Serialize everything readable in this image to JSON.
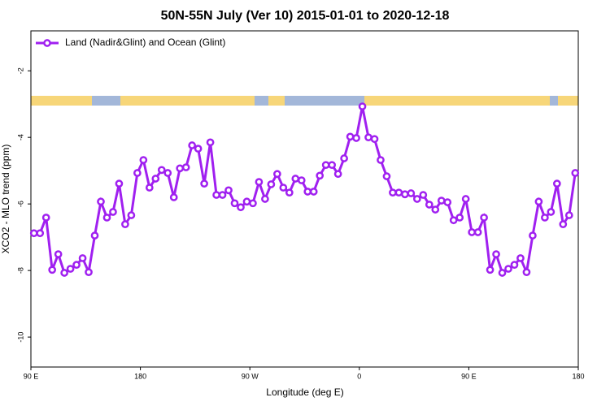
{
  "chart_data": {
    "type": "line",
    "title": "50N-55N July (Ver 10)   2015-01-01 to 2020-12-18",
    "xlabel": "Longitude (deg E)",
    "ylabel": "XCO2 - MLO trend (ppm)",
    "x": [
      92.5,
      97.5,
      102.5,
      107.5,
      112.5,
      117.5,
      122.5,
      127.5,
      132.5,
      137.5,
      142.5,
      147.5,
      152.5,
      157.5,
      162.5,
      167.5,
      172.5,
      177.5,
      182.5,
      187.5,
      192.5,
      197.5,
      202.5,
      207.5,
      212.5,
      217.5,
      222.5,
      227.5,
      232.5,
      237.5,
      242.5,
      247.5,
      252.5,
      257.5,
      262.5,
      267.5,
      272.5,
      277.5,
      282.5,
      287.5,
      292.5,
      297.5,
      302.5,
      307.5,
      312.5,
      317.5,
      322.5,
      327.5,
      332.5,
      337.5,
      342.5,
      347.5,
      352.5,
      357.5,
      362.5,
      367.5,
      372.5,
      377.5,
      382.5,
      387.5,
      392.5,
      397.5,
      402.5,
      407.5,
      412.5,
      417.5,
      422.5,
      427.5,
      432.5,
      437.5,
      442.5,
      447.5,
      452.5,
      457.5,
      462.5,
      467.5,
      472.5,
      477.5,
      482.5,
      487.5,
      492.5,
      497.5,
      502.5,
      507.5,
      512.5,
      517.5,
      522.5,
      527.5,
      532.5,
      537.5
    ],
    "series": [
      {
        "name": "Land (Nadir&Glint) and Ocean (Glint)",
        "color": "#a020f0",
        "values": [
          -6.88,
          -6.88,
          -6.41,
          -7.98,
          -7.51,
          -8.07,
          -7.95,
          -7.83,
          -7.63,
          -8.05,
          -6.95,
          -5.93,
          -6.41,
          -6.24,
          -5.39,
          -6.61,
          -6.34,
          -5.07,
          -4.68,
          -5.51,
          -5.24,
          -4.98,
          -5.07,
          -5.8,
          -4.93,
          -4.9,
          -4.24,
          -4.34,
          -5.39,
          -4.15,
          -5.73,
          -5.73,
          -5.59,
          -5.98,
          -6.1,
          -5.93,
          -5.98,
          -5.34,
          -5.85,
          -5.41,
          -5.1,
          -5.51,
          -5.66,
          -5.24,
          -5.29,
          -5.63,
          -5.63,
          -5.15,
          -4.83,
          -4.83,
          -5.1,
          -4.63,
          -3.98,
          -4.02,
          -3.07,
          -4.0,
          -4.05,
          -4.68,
          -5.17,
          -5.66,
          -5.66,
          -5.71,
          -5.68,
          -5.85,
          -5.73,
          -6.02,
          -6.17,
          -5.9,
          -5.95,
          -6.49,
          -6.41,
          -5.85,
          -6.85,
          -6.85,
          -6.41,
          -7.98,
          -7.51,
          -8.07,
          -7.95,
          -7.83,
          -7.63,
          -8.05,
          -6.95,
          -5.93,
          -6.41,
          -6.24,
          -5.39,
          -6.61,
          -6.34,
          -5.07
        ]
      }
    ],
    "xlim": [
      90,
      540
    ],
    "xticks": [
      {
        "value": 90,
        "label": "90 E"
      },
      180,
      {
        "value": 270,
        "label": "90 W"
      },
      {
        "value": 360,
        "label": "0"
      },
      {
        "value": 450,
        "label": "90 E"
      },
      {
        "value": 540,
        "label": "180"
      }
    ],
    "ylim": [
      -10.9,
      -0.8
    ],
    "yticks": [
      -10,
      -8,
      -6,
      -4,
      -2
    ],
    "grid": false,
    "legend": "upper left"
  }
}
